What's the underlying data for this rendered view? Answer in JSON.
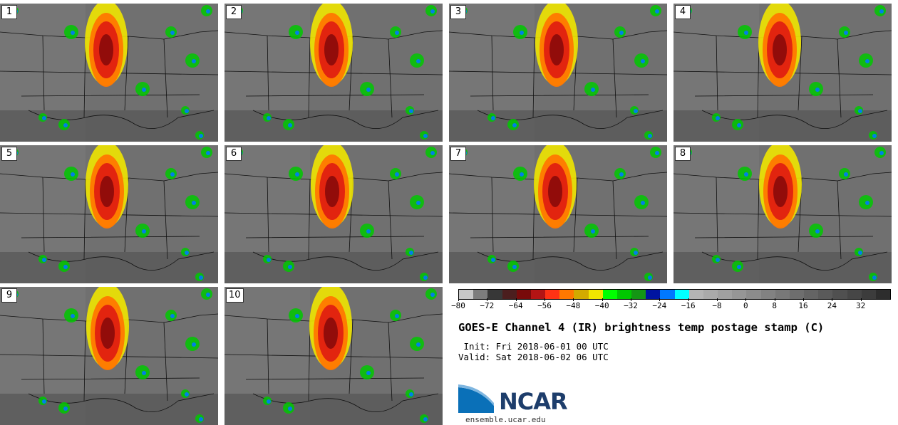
{
  "panels": [
    {
      "label": "1"
    },
    {
      "label": "2"
    },
    {
      "label": "3"
    },
    {
      "label": "4"
    },
    {
      "label": "5"
    },
    {
      "label": "6"
    },
    {
      "label": "7"
    },
    {
      "label": "8"
    },
    {
      "label": "9"
    },
    {
      "label": "10"
    }
  ],
  "colorbar": {
    "colors": [
      "#c8c8c8",
      "#7d7d7d",
      "#373737",
      "#4b1e1e",
      "#780a0a",
      "#b41414",
      "#ff3214",
      "#ff7800",
      "#d2aa00",
      "#f0e600",
      "#00ff00",
      "#00c800",
      "#149614",
      "#0014a0",
      "#0078ff",
      "#00ffff",
      "#b4b4b4",
      "#aaaaaa",
      "#a0a0a0",
      "#969696",
      "#8c8c8c",
      "#828282",
      "#787878",
      "#6e6e6e",
      "#646464",
      "#5a5a5a",
      "#505050",
      "#464646",
      "#3c3c3c",
      "#2d2d2d"
    ],
    "ticks": [
      "−80",
      "−72",
      "−64",
      "−56",
      "−48",
      "−40",
      "−32",
      "−24",
      "−16",
      "−8",
      "0",
      "8",
      "16",
      "24",
      "32"
    ]
  },
  "title": "GOES-E Channel 4 (IR) brightness temp postage stamp (C)",
  "init": " Init: Fri 2018-06-01 00 UTC",
  "valid": "Valid: Sat 2018-06-02 06 UTC",
  "logo": {
    "text": "NCAR",
    "site": "ensemble.ucar.edu"
  }
}
